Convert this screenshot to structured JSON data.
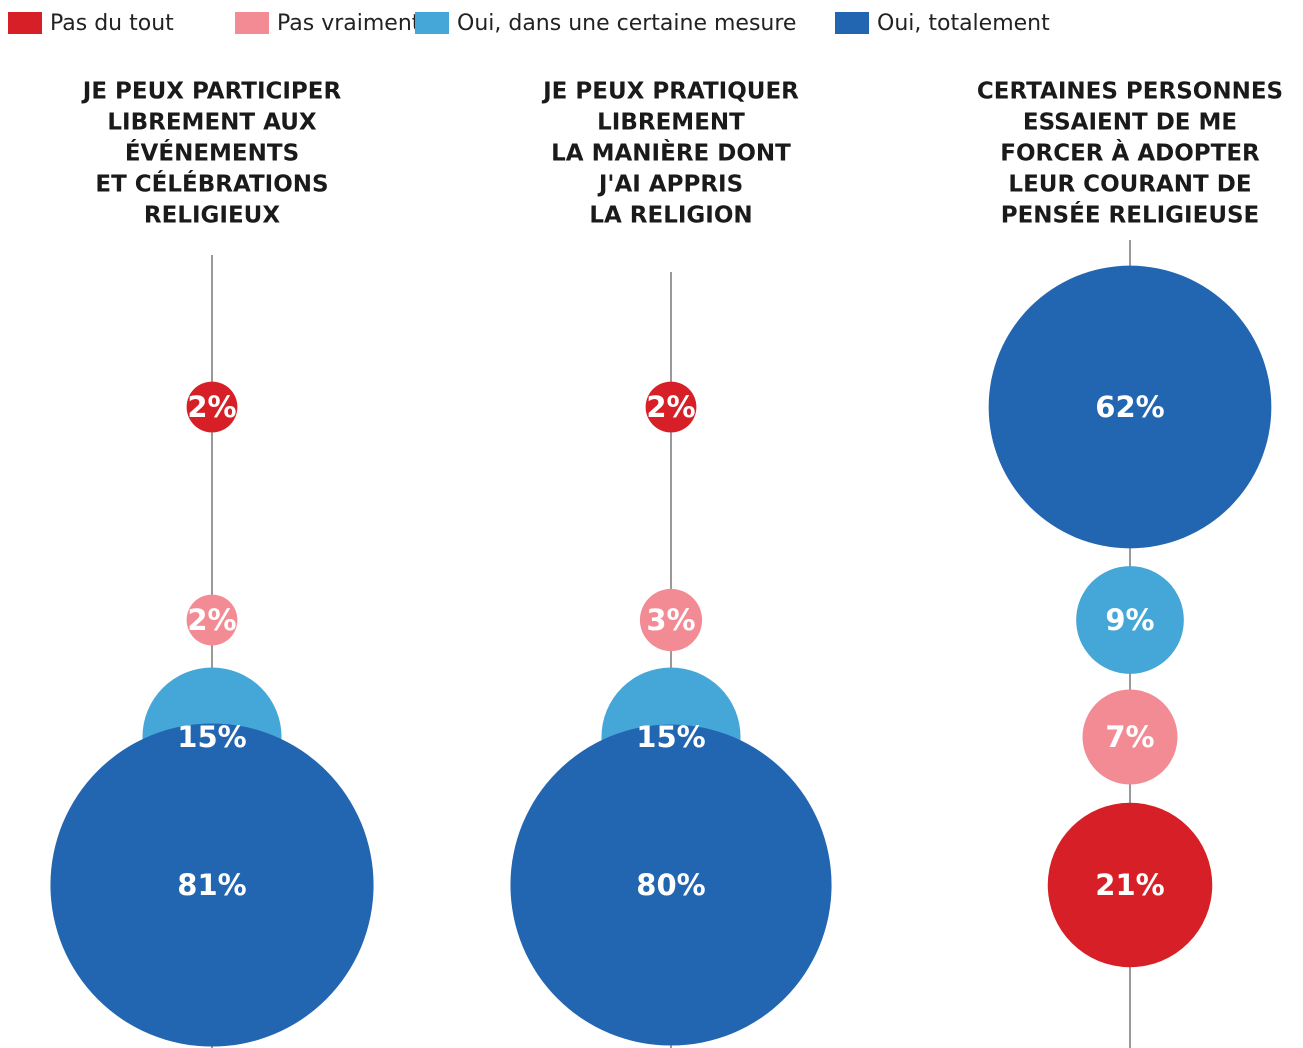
{
  "legend": [
    {
      "name": "Pas du tout",
      "color": "#d71f27"
    },
    {
      "name": "Pas vraiment",
      "color": "#f28b94"
    },
    {
      "name": "Oui, dans une certaine mesure",
      "color": "#45a6d8"
    },
    {
      "name": "Oui, totalement",
      "color": "#2265b0"
    }
  ],
  "chart_data": [
    {
      "type": "bubble",
      "title": [
        "JE PEUX PARTICIPER",
        "LIBREMENT AUX",
        "ÉVÉNEMENTS",
        "ET CÉLÉBRATIONS",
        "RELIGIEUX"
      ],
      "values": [
        2,
        2,
        15,
        81
      ],
      "value_labels": [
        "2%",
        "2%",
        "15%",
        "81%"
      ]
    },
    {
      "type": "bubble",
      "title": [
        "JE PEUX PRATIQUER",
        "LIBREMENT",
        "LA MANIÈRE DONT",
        "J'AI APPRIS",
        "LA RELIGION"
      ],
      "values": [
        2,
        3,
        15,
        80
      ],
      "value_labels": [
        "2%",
        "3%",
        "15%",
        "80%"
      ]
    },
    {
      "type": "bubble",
      "title": [
        "CERTAINES PERSONNES",
        "ESSAIENT DE ME",
        "FORCER À ADOPTER",
        "LEUR COURANT DE",
        "PENSÉE RELIGIEUSE"
      ],
      "values": [
        21,
        7,
        9,
        62
      ],
      "value_labels": [
        "21%",
        "7%",
        "9%",
        "62%"
      ]
    }
  ]
}
